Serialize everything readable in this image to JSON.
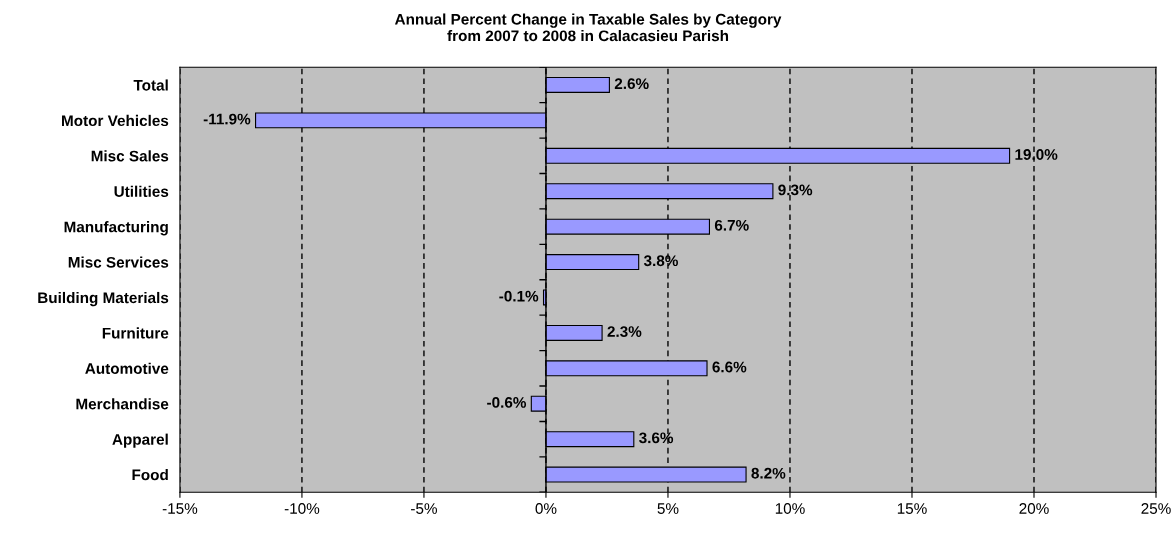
{
  "chart_data": {
    "type": "bar",
    "orientation": "horizontal",
    "title": "Annual Percent Change in Taxable Sales by Category\nfrom 2007 to 2008 in Calacasieu Parish",
    "categories": [
      "Total",
      "Motor Vehicles",
      "Misc Sales",
      "Utilities",
      "Manufacturing",
      "Misc Services",
      "Building Materials",
      "Furniture",
      "Automotive",
      "Merchandise",
      "Apparel",
      "Food"
    ],
    "values": [
      2.6,
      -11.9,
      19.0,
      9.3,
      6.7,
      3.8,
      -0.1,
      2.3,
      6.6,
      -0.6,
      3.6,
      8.2
    ],
    "value_labels": [
      "2.6%",
      "-11.9%",
      "19.0%",
      "9.3%",
      "6.7%",
      "3.8%",
      "-0.1%",
      "2.3%",
      "6.6%",
      "-0.6%",
      "3.6%",
      "8.2%"
    ],
    "color": "#9999ff",
    "xlim": [
      -15,
      25
    ],
    "xticks": [
      {
        "value": -15,
        "label": "-15%"
      },
      {
        "value": -10,
        "label": "-10%"
      },
      {
        "value": -5,
        "label": "-5%"
      },
      {
        "value": 0,
        "label": "0%"
      },
      {
        "value": 5,
        "label": "5%"
      },
      {
        "value": 10,
        "label": "10%"
      },
      {
        "value": 15,
        "label": "15%"
      },
      {
        "value": 20,
        "label": "20%"
      },
      {
        "value": 25,
        "label": "25%"
      }
    ],
    "grid": "x",
    "legend": false,
    "line_style": "dashed"
  }
}
